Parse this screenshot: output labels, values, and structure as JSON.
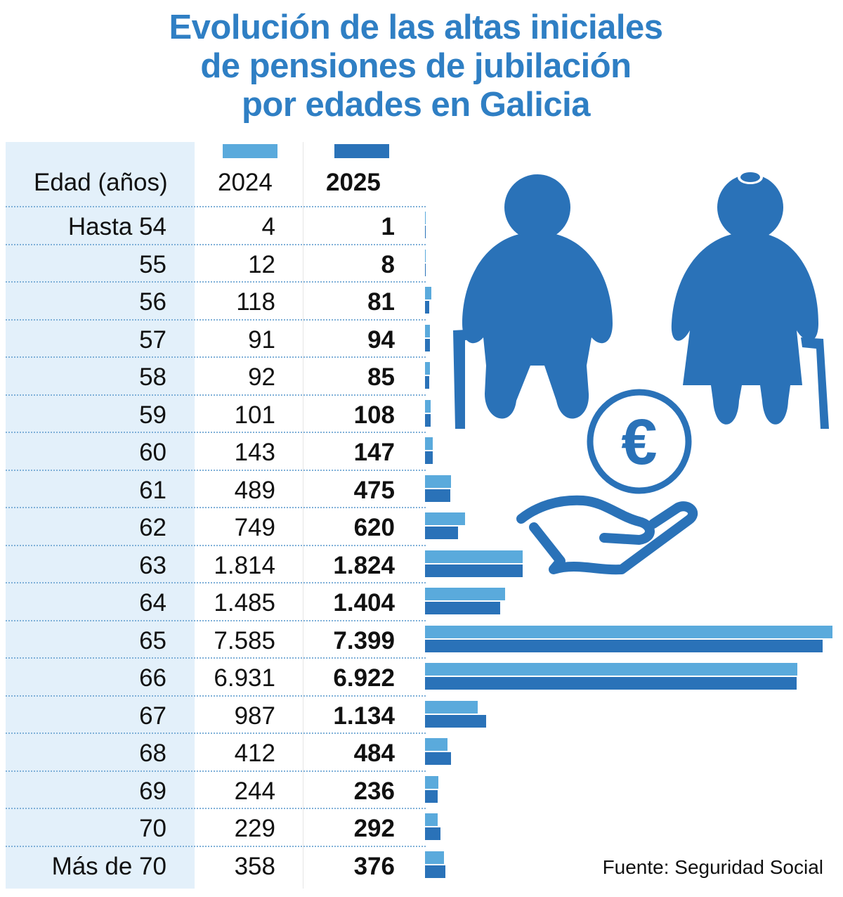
{
  "title_lines": [
    "Evolución de las altas iniciales",
    "de pensiones de jubilación",
    "por edades en Galicia"
  ],
  "source": "Fuente: Seguridad Social",
  "colors": {
    "title": "#2f7fc4",
    "2024": "#5aaadc",
    "2025": "#2a72b8",
    "age_column_bg": "#e3f0fa",
    "icons": "#2a72b8"
  },
  "icons": [
    "elderly-man-icon",
    "elderly-woman-icon",
    "euro-coin-icon",
    "open-hand-icon"
  ],
  "chart_data": {
    "type": "bar",
    "orientation": "horizontal",
    "title": "Evolución de las altas iniciales de pensiones de jubilación por edades en Galicia",
    "column_headers": {
      "age": "Edad (años)",
      "s2024": "2024",
      "s2025": "2025"
    },
    "categories": [
      "Hasta 54",
      "55",
      "56",
      "57",
      "58",
      "59",
      "60",
      "61",
      "62",
      "63",
      "64",
      "65",
      "66",
      "67",
      "68",
      "69",
      "70",
      "Más de 70"
    ],
    "labels_2024": [
      "4",
      "12",
      "118",
      "91",
      "92",
      "101",
      "143",
      "489",
      "749",
      "1.814",
      "1.485",
      "7.585",
      "6.931",
      "987",
      "412",
      "244",
      "229",
      "358"
    ],
    "labels_2025": [
      "1",
      "8",
      "81",
      "94",
      "85",
      "108",
      "147",
      "475",
      "620",
      "1.824",
      "1.404",
      "7.399",
      "6.922",
      "1.134",
      "484",
      "236",
      "292",
      "376"
    ],
    "series": [
      {
        "name": "2024",
        "values": [
          4,
          12,
          118,
          91,
          92,
          101,
          143,
          489,
          749,
          1814,
          1485,
          7585,
          6931,
          987,
          412,
          244,
          229,
          358
        ]
      },
      {
        "name": "2025",
        "values": [
          1,
          8,
          81,
          94,
          85,
          108,
          147,
          475,
          620,
          1824,
          1404,
          7399,
          6922,
          1134,
          484,
          236,
          292,
          376
        ]
      }
    ],
    "legend": "top",
    "xlim": [
      0,
      7585
    ],
    "grid": false
  }
}
